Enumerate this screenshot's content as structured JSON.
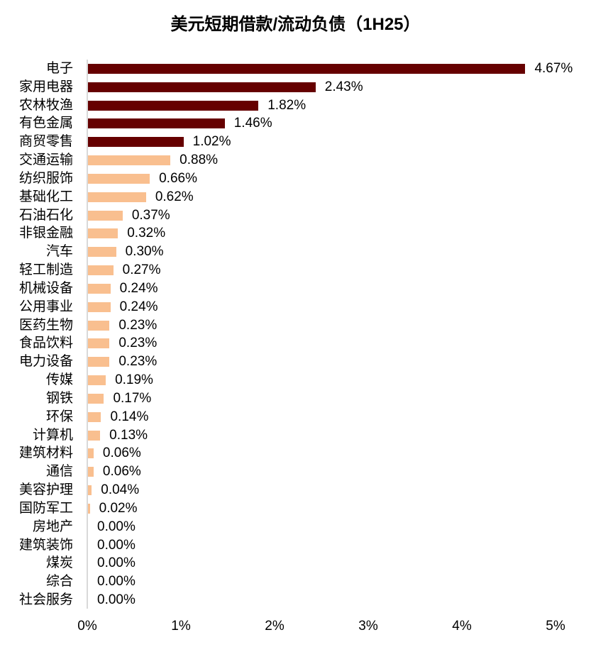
{
  "title": "美元短期借款/流动负债（1H25）",
  "colors": {
    "highlight": "#660000",
    "normal": "#F9BF8F",
    "axis": "#D9D9D9"
  },
  "chart_data": {
    "type": "bar",
    "orientation": "horizontal",
    "title": "美元短期借款/流动负债（1H25）",
    "xlabel": "",
    "ylabel": "",
    "xlim": [
      0,
      5
    ],
    "x_ticks": [
      "0%",
      "1%",
      "2%",
      "3%",
      "4%",
      "5%"
    ],
    "grid": false,
    "legend": null,
    "categories": [
      "电子",
      "家用电器",
      "农林牧渔",
      "有色金属",
      "商贸零售",
      "交通运输",
      "纺织服饰",
      "基础化工",
      "石油石化",
      "非银金融",
      "汽车",
      "轻工制造",
      "机械设备",
      "公用事业",
      "医药生物",
      "食品饮料",
      "电力设备",
      "传媒",
      "钢铁",
      "环保",
      "计算机",
      "建筑材料",
      "通信",
      "美容护理",
      "国防军工",
      "房地产",
      "建筑装饰",
      "煤炭",
      "综合",
      "社会服务"
    ],
    "values": [
      4.67,
      2.43,
      1.82,
      1.46,
      1.02,
      0.88,
      0.66,
      0.62,
      0.37,
      0.32,
      0.3,
      0.27,
      0.24,
      0.24,
      0.23,
      0.23,
      0.23,
      0.19,
      0.17,
      0.14,
      0.13,
      0.06,
      0.06,
      0.04,
      0.02,
      0.0,
      0.0,
      0.0,
      0.0,
      0.0
    ],
    "labels": [
      "4.67%",
      "2.43%",
      "1.82%",
      "1.46%",
      "1.02%",
      "0.88%",
      "0.66%",
      "0.62%",
      "0.37%",
      "0.32%",
      "0.30%",
      "0.27%",
      "0.24%",
      "0.24%",
      "0.23%",
      "0.23%",
      "0.23%",
      "0.19%",
      "0.17%",
      "0.14%",
      "0.13%",
      "0.06%",
      "0.06%",
      "0.04%",
      "0.02%",
      "0.00%",
      "0.00%",
      "0.00%",
      "0.00%",
      "0.00%"
    ],
    "highlight_top_n": 5
  }
}
